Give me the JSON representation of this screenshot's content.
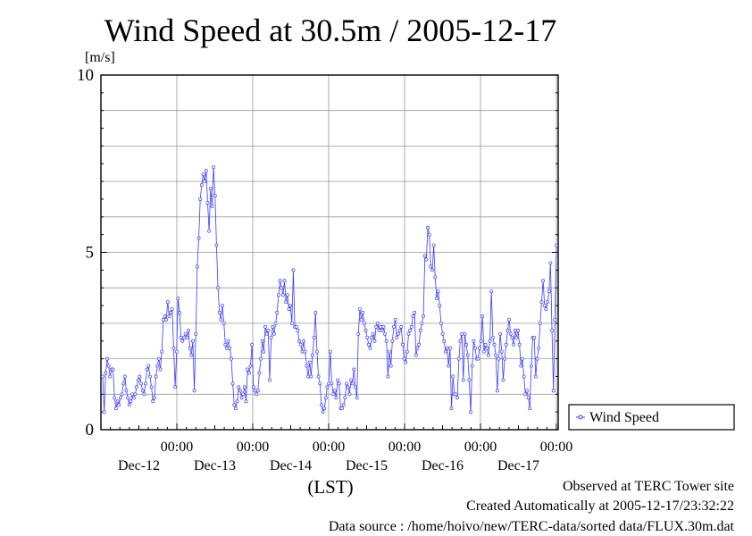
{
  "title": "Wind Speed at 30.5m / 2005-12-17",
  "footer": {
    "observed": "Observed at TERC Tower site",
    "created": "Created Automatically at 2005-12-17/23:32:22",
    "source": "Data source : /home/hoivo/new/TERC-data/sorted  data/FLUX.30m.dat"
  },
  "colors": {
    "series": "#3b3bff",
    "grid": "#9a9a9a",
    "frame": "#000000"
  },
  "chart_data": {
    "type": "line",
    "title": "Wind Speed at 30.5m / 2005-12-17",
    "ylabel": "[m/s]",
    "xlabel": "(LST)",
    "ylim": [
      0,
      10
    ],
    "y_ticks": [
      "0",
      "5",
      "10"
    ],
    "x_tick_time": "00:00",
    "x_day_labels": [
      "Dec-12",
      "Dec-13",
      "Dec-14",
      "Dec-15",
      "Dec-16",
      "Dec-17"
    ],
    "grid": true,
    "legend_position": "right-bottom",
    "series": [
      {
        "name": "Wind Speed",
        "values": [
          1.5,
          0.5,
          1.6,
          2.0,
          1.8,
          1.5,
          1.7,
          1.7,
          0.9,
          0.6,
          0.8,
          0.7,
          0.9,
          1.0,
          1.3,
          1.5,
          1.1,
          0.9,
          0.7,
          0.8,
          1.0,
          0.9,
          1.0,
          1.2,
          1.4,
          1.5,
          1.3,
          1.1,
          1.0,
          1.3,
          1.7,
          1.8,
          1.5,
          1.2,
          0.8,
          0.9,
          1.5,
          1.8,
          2.0,
          1.7,
          2.2,
          3.1,
          3.2,
          3.1,
          3.6,
          3.2,
          3.3,
          3.4,
          2.3,
          1.2,
          2.2,
          3.7,
          3.3,
          2.6,
          2.5,
          2.6,
          2.7,
          2.6,
          2.8,
          2.3,
          2.1,
          2.5,
          1.1,
          2.7,
          4.6,
          5.4,
          6.5,
          6.9,
          7.2,
          7.0,
          7.3,
          6.4,
          5.6,
          6.8,
          6.3,
          7.4,
          6.6,
          5.2,
          4.0,
          3.3,
          3.1,
          3.5,
          3.0,
          2.4,
          2.3,
          2.5,
          2.3,
          2.0,
          1.3,
          0.7,
          0.6,
          0.8,
          1.2,
          1.1,
          0.9,
          1.0,
          1.2,
          0.8,
          1.7,
          1.6,
          1.8,
          2.4,
          1.2,
          1.1,
          1.0,
          1.1,
          1.6,
          2.0,
          2.5,
          2.2,
          2.9,
          2.7,
          2.8,
          1.4,
          2.6,
          2.9,
          2.7,
          3.0,
          3.3,
          3.8,
          4.2,
          4.0,
          3.8,
          4.2,
          3.6,
          3.8,
          3.4,
          3.5,
          3.0,
          4.5,
          2.9,
          2.9,
          2.8,
          2.5,
          2.4,
          2.2,
          2.5,
          2.2,
          1.8,
          1.5,
          1.9,
          1.5,
          2.1,
          2.6,
          3.3,
          2.2,
          1.5,
          1.3,
          0.7,
          0.5,
          0.6,
          0.9,
          1.2,
          1.3,
          2.2,
          1.3,
          1.0,
          1.1,
          0.9,
          1.4,
          1.3,
          0.6,
          0.6,
          0.7,
          0.9,
          1.3,
          1.2,
          1.0,
          1.4,
          1.3,
          1.7,
          1.2,
          0.9,
          2.7,
          3.4,
          3.1,
          3.3,
          3.0,
          2.8,
          2.6,
          2.4,
          2.3,
          2.6,
          2.7,
          2.5,
          2.9,
          3.0,
          2.8,
          2.9,
          2.8,
          2.9,
          2.7,
          2.5,
          1.5,
          2.2,
          1.8,
          2.5,
          2.9,
          3.1,
          2.6,
          2.7,
          2.8,
          2.9,
          2.4,
          2.0,
          1.9,
          2.2,
          2.7,
          2.8,
          2.9,
          3.2,
          3.3,
          2.1,
          2.3,
          2.4,
          2.8,
          3.0,
          3.2,
          4.9,
          4.8,
          5.7,
          5.5,
          4.6,
          4.5,
          5.2,
          4.3,
          3.7,
          3.9,
          3.5,
          3.0,
          2.7,
          2.5,
          2.2,
          2.3,
          1.8,
          2.3,
          0.6,
          1.5,
          1.0,
          1.0,
          0.9,
          2.0,
          2.5,
          2.7,
          1.4,
          2.7,
          2.4,
          2.1,
          1.4,
          0.5,
          1.8,
          2.5,
          2.3,
          2.0,
          2.0,
          2.3,
          2.5,
          3.2,
          2.2,
          2.4,
          2.3,
          2.1,
          2.5,
          3.9,
          2.6,
          2.4,
          2.1,
          1.1,
          2.0,
          2.7,
          2.2,
          1.4,
          2.0,
          2.4,
          2.8,
          3.1,
          2.7,
          2.6,
          2.4,
          2.8,
          2.6,
          2.8,
          2.4,
          1.8,
          2.0,
          1.5,
          1.0,
          1.1,
          0.9,
          0.6,
          1.8,
          2.6,
          2.6,
          1.5,
          2.0,
          2.3,
          3.0,
          3.6,
          4.2,
          3.5,
          3.4,
          3.6,
          3.9,
          4.7,
          2.8,
          1.1,
          3.1,
          5.2
        ]
      }
    ]
  }
}
